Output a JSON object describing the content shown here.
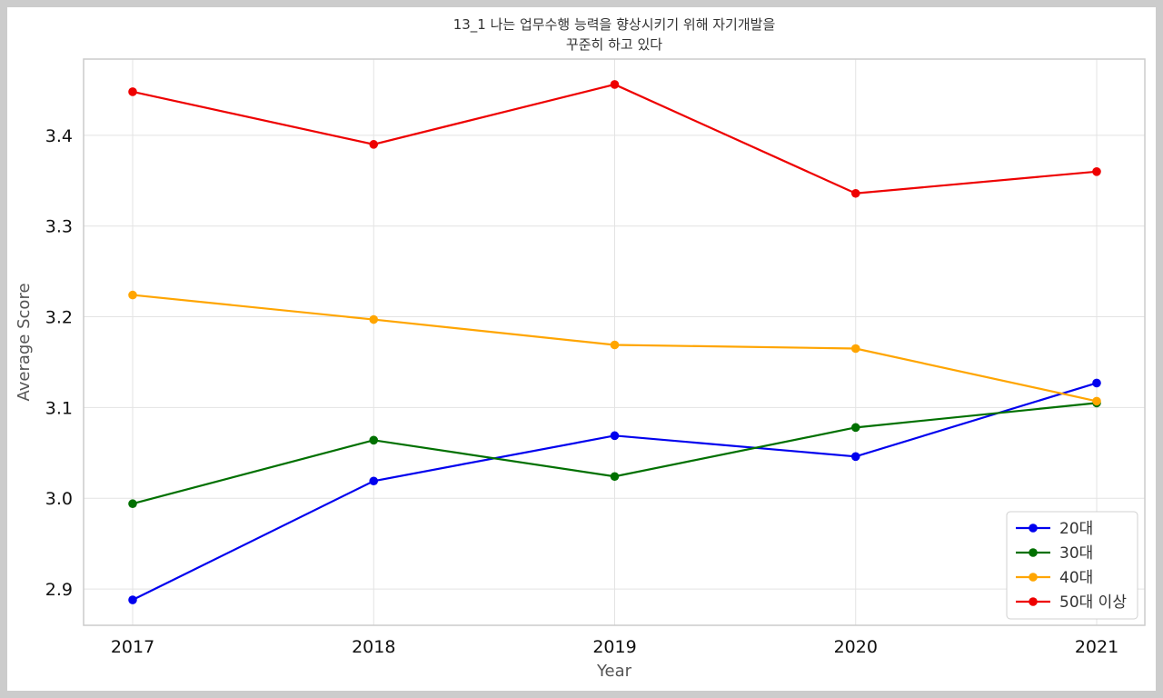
{
  "chart_data": {
    "type": "line",
    "title": [
      "13_1 나는 업무수행 능력을 향상시키기 위해 자기개발을",
      "꾸준히 하고 있다"
    ],
    "xlabel": "Year",
    "ylabel": "Average Score",
    "categories": [
      "2017",
      "2018",
      "2019",
      "2020",
      "2021"
    ],
    "ylim": [
      2.86,
      3.484
    ],
    "yticks": [
      2.9,
      3.0,
      3.1,
      3.2,
      3.3,
      3.4
    ],
    "ytick_labels": [
      "2.9",
      "3.0",
      "3.1",
      "3.2",
      "3.3",
      "3.4"
    ],
    "grid": true,
    "legend_position": "bottom-right",
    "series": [
      {
        "name": "20대",
        "color": "#0000ee",
        "values": [
          2.888,
          3.019,
          3.069,
          3.046,
          3.127
        ]
      },
      {
        "name": "30대",
        "color": "#007000",
        "values": [
          2.994,
          3.064,
          3.024,
          3.078,
          3.105
        ]
      },
      {
        "name": "40대",
        "color": "#ffa500",
        "values": [
          3.224,
          3.197,
          3.169,
          3.165,
          3.107
        ]
      },
      {
        "name": "50대 이상",
        "color": "#ee0000",
        "values": [
          3.448,
          3.39,
          3.456,
          3.336,
          3.36
        ]
      }
    ]
  }
}
